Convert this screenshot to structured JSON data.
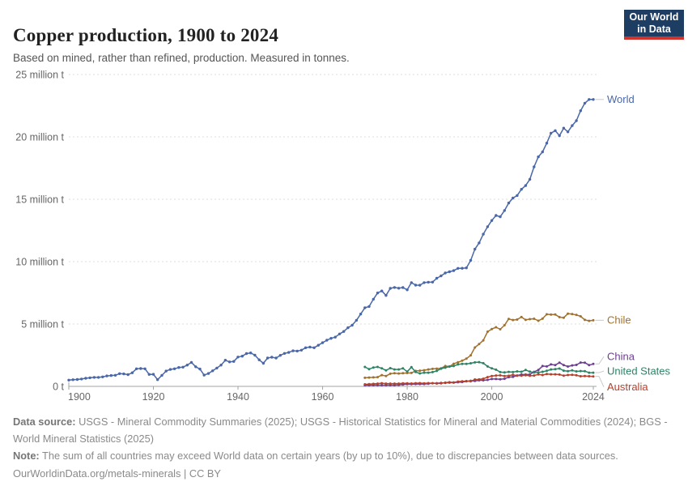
{
  "header": {
    "title": "Copper production, 1900 to 2024",
    "subtitle": "Based on mined, rather than refined, production. Measured in tonnes."
  },
  "logo": {
    "line1": "Our World",
    "line2": "in Data",
    "bg_color": "#1D3D63",
    "accent_color": "#D0342C"
  },
  "chart_data": {
    "type": "line",
    "title": "Copper production, 1900 to 2024",
    "xlabel": "",
    "ylabel": "tonnes",
    "x_range": [
      1900,
      2024
    ],
    "ylim": [
      0,
      25000000
    ],
    "grid": "dashed-horizontal",
    "legend_position": "right-end-labels",
    "x_ticks": [
      1900,
      1920,
      1940,
      1960,
      1980,
      2000,
      2024
    ],
    "y_ticks": [
      {
        "value": 0,
        "label": "0 t"
      },
      {
        "value": 5,
        "label": "5 million t"
      },
      {
        "value": 10,
        "label": "10 million t"
      },
      {
        "value": 15,
        "label": "15 million t"
      },
      {
        "value": 20,
        "label": "20 million t"
      },
      {
        "value": 25,
        "label": "25 million t"
      }
    ],
    "unit": "million tonnes",
    "series": [
      {
        "name": "World",
        "color": "#4A67A8",
        "start_year": 1900,
        "label_dy": 0,
        "values": [
          0.5,
          0.53,
          0.55,
          0.59,
          0.65,
          0.69,
          0.72,
          0.72,
          0.76,
          0.84,
          0.87,
          0.89,
          1.02,
          1.0,
          0.94,
          1.09,
          1.41,
          1.43,
          1.41,
          0.96,
          0.97,
          0.54,
          0.88,
          1.23,
          1.36,
          1.41,
          1.51,
          1.54,
          1.71,
          1.92,
          1.57,
          1.39,
          0.9,
          1.03,
          1.25,
          1.47,
          1.71,
          2.1,
          1.96,
          2.0,
          2.35,
          2.42,
          2.63,
          2.68,
          2.5,
          2.13,
          1.85,
          2.27,
          2.34,
          2.27,
          2.49,
          2.64,
          2.72,
          2.85,
          2.83,
          2.9,
          3.1,
          3.15,
          3.1,
          3.3,
          3.5,
          3.7,
          3.85,
          3.95,
          4.2,
          4.4,
          4.7,
          4.9,
          5.3,
          5.8,
          6.3,
          6.4,
          6.99,
          7.49,
          7.65,
          7.29,
          7.86,
          7.93,
          7.87,
          7.92,
          7.74,
          8.32,
          8.12,
          8.11,
          8.32,
          8.35,
          8.36,
          8.67,
          8.86,
          9.09,
          9.19,
          9.28,
          9.46,
          9.47,
          9.5,
          10.1,
          11.0,
          11.5,
          12.2,
          12.8,
          13.3,
          13.7,
          13.6,
          14.1,
          14.7,
          15.1,
          15.3,
          15.8,
          16.1,
          16.6,
          17.6,
          18.4,
          18.8,
          19.5,
          20.3,
          20.5,
          20.1,
          20.7,
          20.4,
          20.9,
          21.3,
          22.1,
          22.7,
          23.0,
          23.0
        ]
      },
      {
        "name": "Chile",
        "color": "#A0722F",
        "start_year": 1970,
        "label_dy": 0,
        "values": [
          0.69,
          0.71,
          0.72,
          0.74,
          0.9,
          0.83,
          1.01,
          1.06,
          1.03,
          1.06,
          1.07,
          1.08,
          1.24,
          1.26,
          1.29,
          1.36,
          1.4,
          1.42,
          1.45,
          1.63,
          1.59,
          1.81,
          1.93,
          2.06,
          2.22,
          2.49,
          3.12,
          3.39,
          3.69,
          4.38,
          4.6,
          4.74,
          4.58,
          4.9,
          5.41,
          5.32,
          5.36,
          5.56,
          5.33,
          5.39,
          5.42,
          5.26,
          5.43,
          5.78,
          5.75,
          5.76,
          5.55,
          5.5,
          5.83,
          5.79,
          5.73,
          5.62,
          5.33,
          5.25,
          5.3
        ]
      },
      {
        "name": "China",
        "color": "#6D3E91",
        "start_year": 1970,
        "label_dy": -9,
        "values": [
          0.09,
          0.09,
          0.1,
          0.1,
          0.1,
          0.1,
          0.1,
          0.1,
          0.12,
          0.15,
          0.18,
          0.18,
          0.19,
          0.19,
          0.19,
          0.21,
          0.25,
          0.25,
          0.27,
          0.27,
          0.3,
          0.3,
          0.33,
          0.35,
          0.4,
          0.45,
          0.44,
          0.49,
          0.49,
          0.52,
          0.59,
          0.59,
          0.57,
          0.61,
          0.74,
          0.76,
          0.87,
          0.95,
          0.95,
          0.96,
          1.16,
          1.31,
          1.63,
          1.6,
          1.76,
          1.71,
          1.9,
          1.71,
          1.59,
          1.68,
          1.72,
          1.91,
          1.9,
          1.7,
          1.8
        ]
      },
      {
        "name": "United States",
        "color": "#2C8465",
        "start_year": 1970,
        "label_dy": -2,
        "values": [
          1.56,
          1.38,
          1.51,
          1.56,
          1.45,
          1.28,
          1.46,
          1.36,
          1.36,
          1.44,
          1.18,
          1.54,
          1.15,
          1.04,
          1.1,
          1.1,
          1.14,
          1.24,
          1.42,
          1.5,
          1.59,
          1.63,
          1.76,
          1.8,
          1.8,
          1.85,
          1.92,
          1.94,
          1.86,
          1.6,
          1.44,
          1.34,
          1.14,
          1.12,
          1.16,
          1.14,
          1.2,
          1.17,
          1.31,
          1.18,
          1.11,
          1.11,
          1.17,
          1.25,
          1.36,
          1.38,
          1.43,
          1.26,
          1.22,
          1.28,
          1.2,
          1.23,
          1.22,
          1.1,
          1.1
        ]
      },
      {
        "name": "Australia",
        "color": "#B6402B",
        "start_year": 1970,
        "label_dy": 13,
        "values": [
          0.16,
          0.18,
          0.2,
          0.22,
          0.25,
          0.22,
          0.22,
          0.22,
          0.22,
          0.24,
          0.24,
          0.23,
          0.25,
          0.26,
          0.24,
          0.26,
          0.25,
          0.23,
          0.24,
          0.3,
          0.33,
          0.32,
          0.38,
          0.4,
          0.42,
          0.4,
          0.55,
          0.56,
          0.61,
          0.74,
          0.83,
          0.87,
          0.88,
          0.83,
          0.85,
          0.93,
          0.86,
          0.86,
          0.89,
          0.85,
          0.87,
          0.96,
          0.91,
          0.99,
          0.97,
          0.97,
          0.95,
          0.86,
          0.91,
          0.93,
          0.89,
          0.81,
          0.83,
          0.81,
          0.8
        ]
      }
    ]
  },
  "footer": {
    "data_source_label": "Data source:",
    "data_source": "USGS - Mineral Commodity Summaries (2025); USGS - Historical Statistics for Mineral and Material Commodities (2024); BGS - World Mineral Statistics (2025)",
    "note_label": "Note:",
    "note": "The sum of all countries may exceed World data on certain years (by up to 10%), due to discrepancies between data sources.",
    "link": "OurWorldinData.org/metals-minerals | CC BY"
  }
}
